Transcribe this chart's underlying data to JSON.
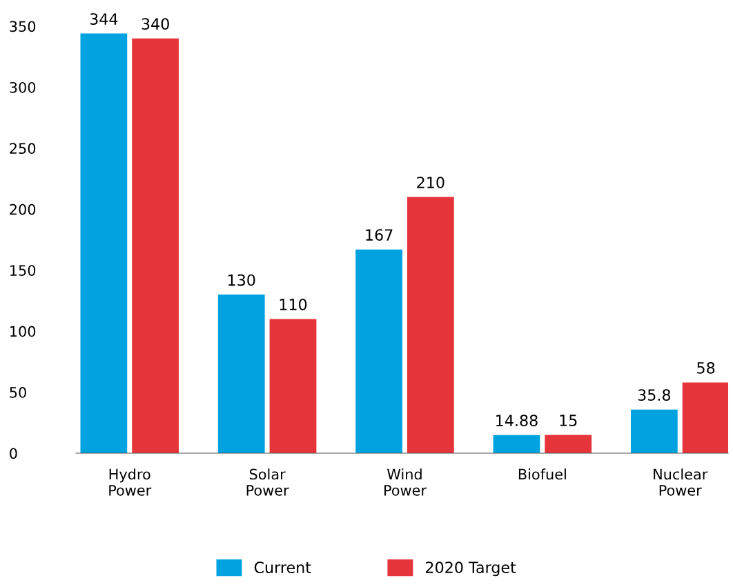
{
  "chart_data": {
    "type": "bar",
    "categories": [
      "Hydro\nPower",
      "Solar\nPower",
      "Wind\nPower",
      "Biofuel",
      "Nuclear\nPower"
    ],
    "series": [
      {
        "name": "Current",
        "color": "#00a3e0",
        "values": [
          344,
          130,
          167,
          14.88,
          35.8
        ]
      },
      {
        "name": "2020 Target",
        "color": "#e5343a",
        "values": [
          340,
          110,
          210,
          15,
          58
        ]
      }
    ],
    "ylim": [
      0,
      350
    ],
    "yticks": [
      0,
      50,
      100,
      150,
      200,
      250,
      300,
      350
    ],
    "data_labels": true,
    "grid": false,
    "legend": "bottom"
  }
}
